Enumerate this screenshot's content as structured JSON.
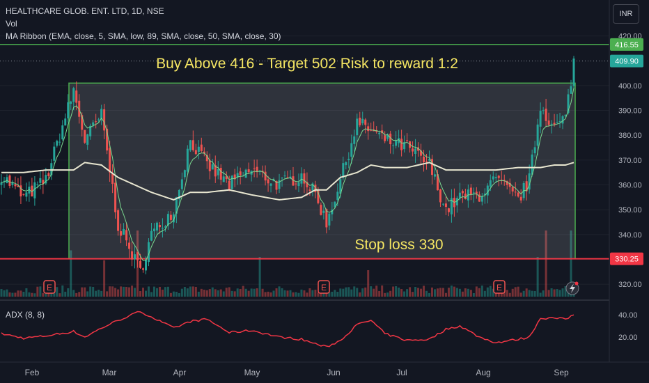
{
  "header": {
    "symbol_line": "HEALTHCARE GLOB. ENT. LTD, 1D, NSE",
    "vol_label": "Vol",
    "ma_ribbon_label": "MA Ribbon (EMA, close, 5, SMA, low, 89, SMA, close, 50, SMA, close, 30)",
    "currency": "INR"
  },
  "annotations": {
    "buy_text": "Buy Above 416 - Target 502 Risk to reward 1:2",
    "stop_text": "Stop loss 330"
  },
  "colors": {
    "background": "#131722",
    "up": "#26a69a",
    "down": "#ef5350",
    "box_border": "#4caf50",
    "annotation_text": "#f5e663",
    "ma": "#e8e6d0",
    "adx": "#f23645",
    "breakout_line": "#4caf50",
    "stop_line": "#f23645"
  },
  "price_axis": {
    "ticks": [
      "420.00",
      "400.00",
      "390.00",
      "380.00",
      "370.00",
      "360.00",
      "350.00",
      "340.00",
      "320.00"
    ],
    "labels": [
      {
        "text": "416.55",
        "kind": "breakout"
      },
      {
        "text": "409.90",
        "kind": "last"
      },
      {
        "text": "330.25",
        "kind": "stop"
      }
    ]
  },
  "adx_panel": {
    "title": "ADX (8, 8)",
    "ticks": [
      "40.00",
      "20.00"
    ]
  },
  "time_axis": {
    "labels": [
      "Feb",
      "Mar",
      "Apr",
      "May",
      "Jun",
      "Jul",
      "Aug",
      "Sep"
    ]
  },
  "event_markers": [
    "E",
    "E",
    "E"
  ],
  "chart_data": {
    "type": "candlestick",
    "ylim": [
      315,
      421
    ],
    "adx_ylim": [
      5,
      50
    ],
    "breakout_level": 416.55,
    "last_price": 409.9,
    "stop_level": 330.25,
    "box": {
      "low": 330.25,
      "high": 401
    },
    "anchors": [
      {
        "i": 0,
        "close": 364,
        "ma": 365,
        "adx": 23
      },
      {
        "i": 8,
        "close": 355,
        "ma": 365,
        "adx": 19
      },
      {
        "i": 16,
        "close": 362,
        "ma": 366,
        "adx": 21
      },
      {
        "i": 26,
        "close": 398,
        "ma": 366,
        "adx": 25
      },
      {
        "i": 30,
        "close": 378,
        "ma": 369,
        "adx": 20
      },
      {
        "i": 36,
        "close": 388,
        "ma": 368,
        "adx": 28
      },
      {
        "i": 42,
        "close": 344,
        "ma": 363,
        "adx": 35
      },
      {
        "i": 50,
        "close": 325,
        "ma": 359,
        "adx": 43
      },
      {
        "i": 54,
        "close": 340,
        "ma": 357,
        "adx": 38
      },
      {
        "i": 62,
        "close": 350,
        "ma": 354,
        "adx": 28
      },
      {
        "i": 68,
        "close": 378,
        "ma": 357,
        "adx": 34
      },
      {
        "i": 74,
        "close": 368,
        "ma": 357,
        "adx": 36
      },
      {
        "i": 82,
        "close": 360,
        "ma": 358,
        "adx": 24
      },
      {
        "i": 90,
        "close": 366,
        "ma": 356,
        "adx": 26
      },
      {
        "i": 100,
        "close": 360,
        "ma": 354,
        "adx": 20
      },
      {
        "i": 108,
        "close": 364,
        "ma": 355,
        "adx": 18
      },
      {
        "i": 113,
        "close": 356,
        "ma": 358,
        "adx": 14
      },
      {
        "i": 117,
        "close": 345,
        "ma": 358,
        "adx": 11
      },
      {
        "i": 122,
        "close": 362,
        "ma": 363,
        "adx": 17
      },
      {
        "i": 128,
        "close": 385,
        "ma": 365,
        "adx": 31
      },
      {
        "i": 133,
        "close": 382,
        "ma": 368,
        "adx": 35
      },
      {
        "i": 138,
        "close": 378,
        "ma": 367,
        "adx": 23
      },
      {
        "i": 146,
        "close": 375,
        "ma": 367,
        "adx": 17
      },
      {
        "i": 154,
        "close": 368,
        "ma": 369,
        "adx": 18
      },
      {
        "i": 160,
        "close": 350,
        "ma": 366,
        "adx": 27
      },
      {
        "i": 165,
        "close": 355,
        "ma": 366,
        "adx": 30
      },
      {
        "i": 172,
        "close": 356,
        "ma": 366,
        "adx": 20
      },
      {
        "i": 178,
        "close": 362,
        "ma": 366,
        "adx": 15
      },
      {
        "i": 186,
        "close": 354,
        "ma": 367,
        "adx": 18
      },
      {
        "i": 190,
        "close": 362,
        "ma": 367,
        "adx": 20
      },
      {
        "i": 194,
        "close": 392,
        "ma": 367,
        "adx": 37
      },
      {
        "i": 199,
        "close": 383,
        "ma": 368,
        "adx": 37
      },
      {
        "i": 203,
        "close": 387,
        "ma": 368,
        "adx": 36
      },
      {
        "i": 206,
        "close": 410,
        "ma": 369,
        "adx": 40
      }
    ],
    "volume_spikes": [
      {
        "i": 25,
        "v": 0.7
      },
      {
        "i": 37,
        "v": 0.55
      },
      {
        "i": 49,
        "v": 1.0
      },
      {
        "i": 93,
        "v": 0.6
      },
      {
        "i": 132,
        "v": 0.4
      },
      {
        "i": 193,
        "v": 0.6
      },
      {
        "i": 196,
        "v": 1.0
      },
      {
        "i": 205,
        "v": 1.0
      }
    ]
  }
}
